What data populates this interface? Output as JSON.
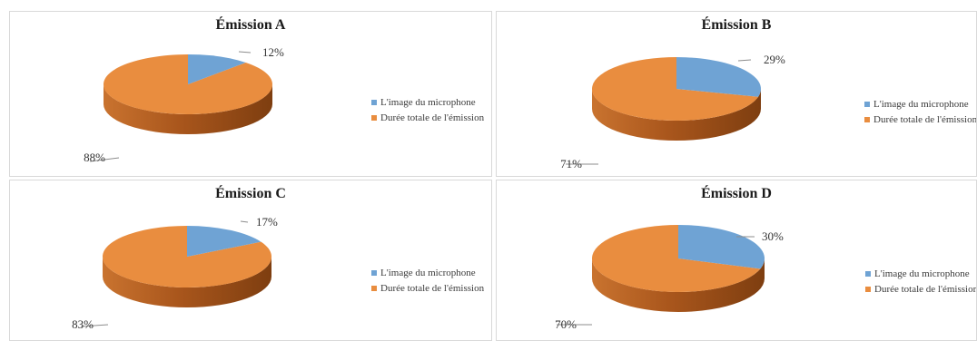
{
  "colors": {
    "microphone": "#6fa3d4",
    "microphone_dark": "#4a7bb0",
    "total": "#e98d3f",
    "total_side": "#a9561c"
  },
  "legend": {
    "microphone_label": "L'image du microphone",
    "total_label": "Durée totale de l'émission"
  },
  "chart_data": [
    {
      "type": "pie",
      "title": "Émission A",
      "categories": [
        "L'image du microphone",
        "Durée totale de l'émission"
      ],
      "values": [
        12,
        88
      ],
      "labels": [
        "12%",
        "88%"
      ],
      "legend_position": "right"
    },
    {
      "type": "pie",
      "title": "Émission B",
      "categories": [
        "L'image du microphone",
        "Durée totale de l'émission"
      ],
      "values": [
        29,
        71
      ],
      "labels": [
        "29%",
        "71%"
      ],
      "legend_position": "right"
    },
    {
      "type": "pie",
      "title": "Émission C",
      "categories": [
        "L'image du microphone",
        "Durée totale de l'émission"
      ],
      "values": [
        17,
        83
      ],
      "labels": [
        "17%",
        "83%"
      ],
      "legend_position": "right"
    },
    {
      "type": "pie",
      "title": "Émission D",
      "categories": [
        "L'image du microphone",
        "Durée totale de l'émission"
      ],
      "values": [
        30,
        70
      ],
      "labels": [
        "30%",
        "70%"
      ],
      "legend_position": "right"
    }
  ]
}
